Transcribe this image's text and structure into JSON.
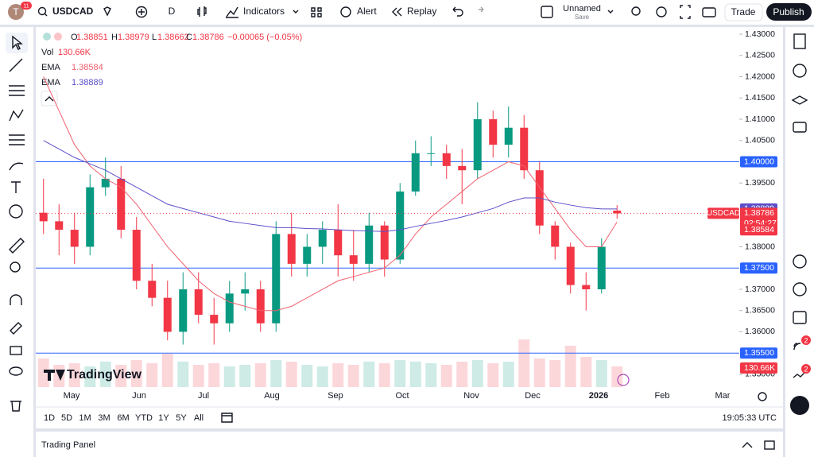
{
  "toolbar": {
    "avatar": "T",
    "notifications": "11",
    "symbol": "USDCAD",
    "interval": "D",
    "indicators": "Indicators",
    "alert": "Alert",
    "replay": "Replay",
    "layout_name": "Unnamed",
    "layout_status": "Save",
    "trade": "Trade",
    "publish": "Publish"
  },
  "legend": {
    "open_label": "O",
    "high_label": "H",
    "low_label": "L",
    "close_label": "C",
    "change": "−0.00065 (−0.05%)",
    "volume_label": "Vol"
  },
  "chart_data": {
    "type": "candlestick",
    "symbol": "USDCAD",
    "open": [
      1.388,
      1.386,
      1.384,
      1.38,
      1.394,
      1.396,
      1.384,
      1.372,
      1.368,
      1.36,
      1.37,
      1.364,
      1.362,
      1.369,
      1.37,
      1.362,
      1.383,
      1.376,
      1.38,
      1.384,
      1.378,
      1.376,
      1.385,
      1.377,
      1.393,
      1.402,
      1.402,
      1.399,
      1.398,
      1.41,
      1.404,
      1.408,
      1.398,
      1.385,
      1.38,
      1.371,
      1.37,
      1.38851
    ],
    "high": [
      1.396,
      1.39,
      1.388,
      1.397,
      1.401,
      1.399,
      1.387,
      1.376,
      1.372,
      1.374,
      1.374,
      1.368,
      1.372,
      1.374,
      1.372,
      1.386,
      1.388,
      1.383,
      1.386,
      1.39,
      1.384,
      1.388,
      1.386,
      1.395,
      1.405,
      1.406,
      1.404,
      1.403,
      1.414,
      1.412,
      1.413,
      1.411,
      1.4,
      1.386,
      1.381,
      1.374,
      1.382,
      1.38979
    ],
    "low": [
      1.383,
      1.378,
      1.376,
      1.378,
      1.392,
      1.382,
      1.37,
      1.366,
      1.358,
      1.357,
      1.362,
      1.357,
      1.36,
      1.365,
      1.36,
      1.36,
      1.373,
      1.373,
      1.376,
      1.373,
      1.372,
      1.374,
      1.373,
      1.376,
      1.392,
      1.399,
      1.396,
      1.39,
      1.396,
      1.401,
      1.401,
      1.396,
      1.383,
      1.377,
      1.369,
      1.365,
      1.369,
      1.38662
    ],
    "close": [
      1.386,
      1.384,
      1.38,
      1.394,
      1.396,
      1.384,
      1.372,
      1.368,
      1.36,
      1.37,
      1.364,
      1.362,
      1.369,
      1.37,
      1.362,
      1.383,
      1.376,
      1.38,
      1.384,
      1.378,
      1.376,
      1.385,
      1.377,
      1.393,
      1.402,
      1.402,
      1.399,
      1.398,
      1.41,
      1.404,
      1.408,
      1.398,
      1.385,
      1.38,
      1.371,
      1.37,
      1.38,
      1.38786
    ],
    "up_color": "#089981",
    "down_color": "#f23645",
    "volume": {
      "values": [
        180000,
        140000,
        150000,
        130000,
        160000,
        140000,
        170000,
        150000,
        210000,
        160000,
        140000,
        150000,
        130000,
        140000,
        150000,
        170000,
        160000,
        140000,
        130000,
        150000,
        140000,
        160000,
        150000,
        170000,
        160000,
        150000,
        140000,
        160000,
        170000,
        150000,
        160000,
        300000,
        180000,
        170000,
        260000,
        190000,
        170000,
        130660
      ],
      "last_label": "130.66K"
    },
    "series": [
      {
        "name": "EMA",
        "color": "#f0616f",
        "values": [
          1.42,
          1.412,
          1.404,
          1.399,
          1.396,
          1.394,
          1.39,
          1.385,
          1.38,
          1.376,
          1.372,
          1.369,
          1.367,
          1.366,
          1.365,
          1.365,
          1.366,
          1.368,
          1.37,
          1.372,
          1.373,
          1.374,
          1.375,
          1.378,
          1.383,
          1.387,
          1.39,
          1.393,
          1.396,
          1.398,
          1.4,
          1.399,
          1.394,
          1.389,
          1.384,
          1.38,
          1.38,
          1.38584
        ]
      },
      {
        "name": "EMA",
        "color": "#5b4fc9",
        "values": [
          1.405,
          1.403,
          1.401,
          1.3995,
          1.398,
          1.396,
          1.394,
          1.392,
          1.39,
          1.389,
          1.388,
          1.387,
          1.386,
          1.3855,
          1.385,
          1.3845,
          1.3845,
          1.3843,
          1.3842,
          1.384,
          1.3838,
          1.3837,
          1.3836,
          1.384,
          1.3848,
          1.3855,
          1.3862,
          1.387,
          1.388,
          1.389,
          1.3905,
          1.3915,
          1.3915,
          1.3905,
          1.3898,
          1.3892,
          1.3889,
          1.38889
        ]
      }
    ],
    "ylim": [
      1.347,
      1.4315
    ],
    "yticks": [
      {
        "value": 1.43,
        "label": "1.43000"
      },
      {
        "value": 1.425,
        "label": "1.42500"
      },
      {
        "value": 1.42,
        "label": "1.42000"
      },
      {
        "value": 1.415,
        "label": "1.41500"
      },
      {
        "value": 1.41,
        "label": "1.41000"
      },
      {
        "value": 1.405,
        "label": "1.40500"
      },
      {
        "value": 1.395,
        "label": "1.39500"
      },
      {
        "value": 1.38,
        "label": "1.38000"
      },
      {
        "value": 1.37,
        "label": "1.37000"
      },
      {
        "value": 1.365,
        "label": "1.36500"
      },
      {
        "value": 1.36,
        "label": "1.36000"
      },
      {
        "value": 1.35,
        "label": "1.35000"
      }
    ],
    "levels": [
      {
        "value": 1.4,
        "label": "1.40000"
      },
      {
        "value": 1.375,
        "label": "1.37500"
      },
      {
        "value": 1.355,
        "label": "1.35500"
      }
    ],
    "last_price": {
      "value": 1.38786,
      "label": "1.38786",
      "countdown": "02:54:27"
    },
    "x_labels": [
      "May",
      "Jun",
      "Jul",
      "Aug",
      "Sep",
      "Oct",
      "Nov",
      "Dec",
      "2026",
      "Feb",
      "Mar"
    ]
  },
  "logo": "TradingView",
  "ranges": [
    "1D",
    "5D",
    "1M",
    "3M",
    "6M",
    "YTD",
    "1Y",
    "5Y",
    "All"
  ],
  "clock": "19:05:33 UTC",
  "trading_panel": "Trading Panel",
  "sidebar_badges": [
    "2",
    "2"
  ]
}
